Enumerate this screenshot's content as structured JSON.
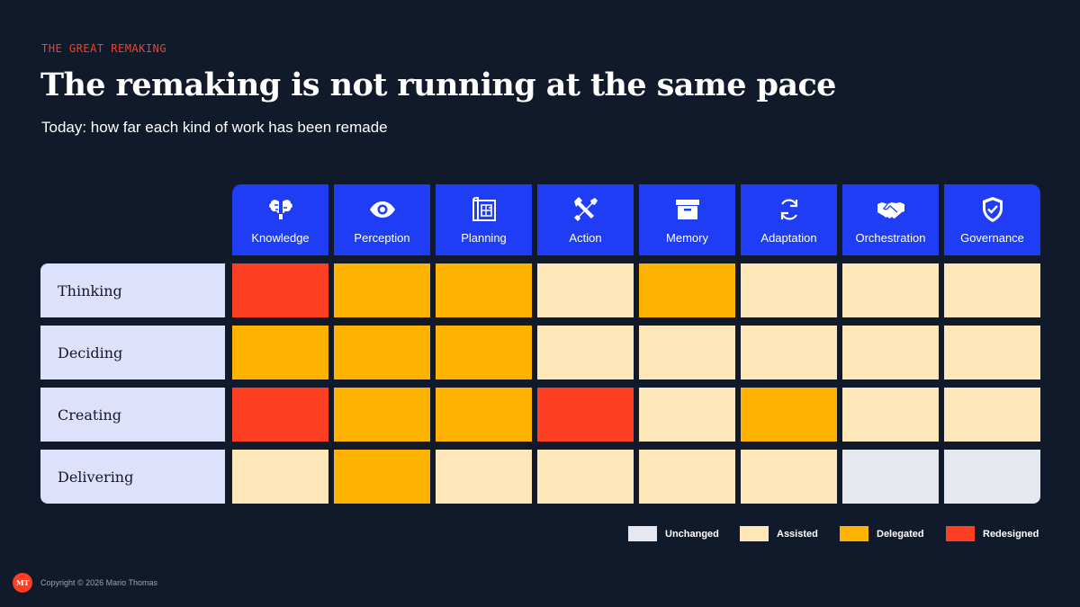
{
  "eyebrow": "THE GREAT REMAKING",
  "title": "The remaking is not running at the same pace",
  "subtitle": "Today: how far each kind of work has been remade",
  "colors": {
    "Unchanged": "#e5e8ef",
    "Assisted": "#fee7b9",
    "Delegated": "#ffb300",
    "Redesigned": "#fe3e22",
    "header": "#1f3df5",
    "rowHeader": "#dde1fb",
    "background": "#111a2b",
    "accent": "#ff3c22"
  },
  "chart_data": {
    "type": "heatmap",
    "columns": [
      {
        "label": "Knowledge",
        "icon": "brain-icon"
      },
      {
        "label": "Perception",
        "icon": "eye-icon"
      },
      {
        "label": "Planning",
        "icon": "blueprint-icon"
      },
      {
        "label": "Action",
        "icon": "tools-icon"
      },
      {
        "label": "Memory",
        "icon": "archive-box-icon"
      },
      {
        "label": "Adaptation",
        "icon": "refresh-cycle-icon"
      },
      {
        "label": "Orchestration",
        "icon": "handshake-icon"
      },
      {
        "label": "Governance",
        "icon": "shield-check-icon"
      }
    ],
    "rows": [
      "Thinking",
      "Deciding",
      "Creating",
      "Delivering"
    ],
    "values": [
      [
        "Redesigned",
        "Delegated",
        "Delegated",
        "Assisted",
        "Delegated",
        "Assisted",
        "Assisted",
        "Assisted"
      ],
      [
        "Delegated",
        "Delegated",
        "Delegated",
        "Assisted",
        "Assisted",
        "Assisted",
        "Assisted",
        "Assisted"
      ],
      [
        "Redesigned",
        "Delegated",
        "Delegated",
        "Redesigned",
        "Assisted",
        "Delegated",
        "Assisted",
        "Assisted"
      ],
      [
        "Assisted",
        "Delegated",
        "Assisted",
        "Assisted",
        "Assisted",
        "Assisted",
        "Unchanged",
        "Unchanged"
      ]
    ],
    "legend": [
      "Unchanged",
      "Assisted",
      "Delegated",
      "Redesigned"
    ]
  },
  "footer": {
    "logo": "MT",
    "copyright": "Copyright © 2026 Mario Thomas"
  }
}
